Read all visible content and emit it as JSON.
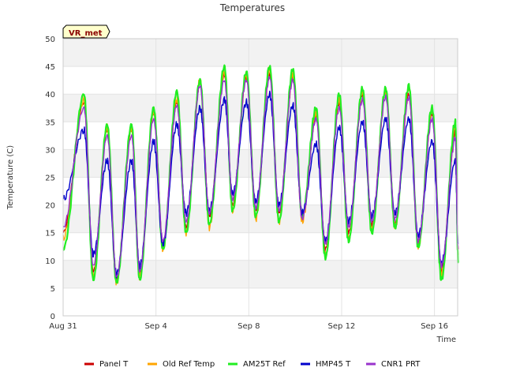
{
  "chart_data": {
    "type": "line",
    "title": "Temperatures",
    "xlabel": "Time",
    "ylabel": "Temperature (C)",
    "badge": "VR_met",
    "x_start": "Aug 31",
    "x_end": "Sep 17",
    "xlim_days": [
      0,
      17.0
    ],
    "x_ticks": [
      {
        "day": 0,
        "label": "Aug 31"
      },
      {
        "day": 4,
        "label": "Sep 4"
      },
      {
        "day": 8,
        "label": "Sep 8"
      },
      {
        "day": 12,
        "label": "Sep 12"
      },
      {
        "day": 16,
        "label": "Sep 16"
      }
    ],
    "ylim": [
      0,
      50
    ],
    "y_ticks": [
      0,
      5,
      10,
      15,
      20,
      25,
      30,
      35,
      40,
      45,
      50
    ],
    "grid": true,
    "legend_position": "bottom",
    "daily_extremes_days": [
      0.9,
      1.3,
      1.9,
      2.3,
      2.95,
      3.3,
      3.9,
      4.3,
      4.9,
      5.3,
      5.9,
      6.3,
      6.95,
      7.3,
      7.9,
      8.3,
      8.9,
      9.3,
      9.9,
      10.3,
      10.9,
      11.3,
      11.9,
      12.3,
      12.9,
      13.3,
      13.9,
      14.3,
      14.9,
      15.3,
      15.9,
      16.3,
      16.9
    ],
    "series": [
      {
        "name": "Panel T",
        "color": "#cc0000",
        "start": 15,
        "end": 12,
        "peaks": [
          38.5,
          33.5,
          33.5,
          36.5,
          38.5,
          42,
          43.5,
          43,
          43.5,
          43,
          36,
          38.5,
          40,
          40.5,
          40,
          36.5,
          33
        ],
        "troughs": [
          8,
          6.5,
          7.5,
          13,
          16,
          18,
          20,
          19,
          18.5,
          18,
          12,
          15,
          16.5,
          16.5,
          13,
          8
        ]
      },
      {
        "name": "Old Ref Temp",
        "color": "#ffa500",
        "start": 14,
        "end": 11,
        "peaks": [
          39,
          34,
          34,
          37,
          39,
          42.5,
          44,
          43.5,
          44.5,
          43.5,
          36.5,
          39,
          40.5,
          40.5,
          41,
          37,
          34
        ],
        "troughs": [
          7,
          6,
          7,
          12,
          15,
          16,
          19,
          17.5,
          17,
          17,
          11,
          14,
          15.5,
          16,
          12.5,
          7.5
        ]
      },
      {
        "name": "AM25T Ref",
        "color": "#22ee22",
        "start": 12,
        "end": 10,
        "peaks": [
          40,
          34.5,
          34.5,
          37.5,
          40.5,
          42.5,
          45,
          44,
          45,
          44.5,
          37.5,
          40,
          41,
          41,
          41.5,
          37.5,
          35
        ],
        "troughs": [
          6.5,
          6,
          6.5,
          12,
          15,
          16.5,
          19,
          18,
          17,
          18,
          10.5,
          13.5,
          15,
          16,
          12.5,
          6.5
        ]
      },
      {
        "name": "HMP45 T",
        "color": "#0000cc",
        "start": 21,
        "end": 13,
        "peaks": [
          33.5,
          28,
          28,
          31.5,
          34.5,
          37.5,
          39,
          38.5,
          40,
          38,
          31,
          34,
          35,
          35.5,
          35.5,
          31.5,
          28
        ],
        "troughs": [
          11,
          7.5,
          9,
          13,
          18.5,
          19,
          22,
          20.5,
          20,
          18.5,
          13.5,
          17,
          18,
          18.5,
          14.5,
          9.5
        ]
      },
      {
        "name": "CNR1 PRT",
        "color": "#9933cc",
        "start": 16,
        "end": 12,
        "peaks": [
          37.5,
          32.5,
          32.5,
          35.5,
          38,
          41.5,
          42.5,
          42.5,
          43,
          42.5,
          35.5,
          37.5,
          39,
          39.5,
          39.5,
          35.5,
          32
        ],
        "troughs": [
          9,
          7,
          8,
          13.5,
          17,
          18.5,
          21,
          19.5,
          19,
          17.5,
          13,
          16,
          17,
          17.5,
          13.5,
          9
        ]
      }
    ]
  }
}
